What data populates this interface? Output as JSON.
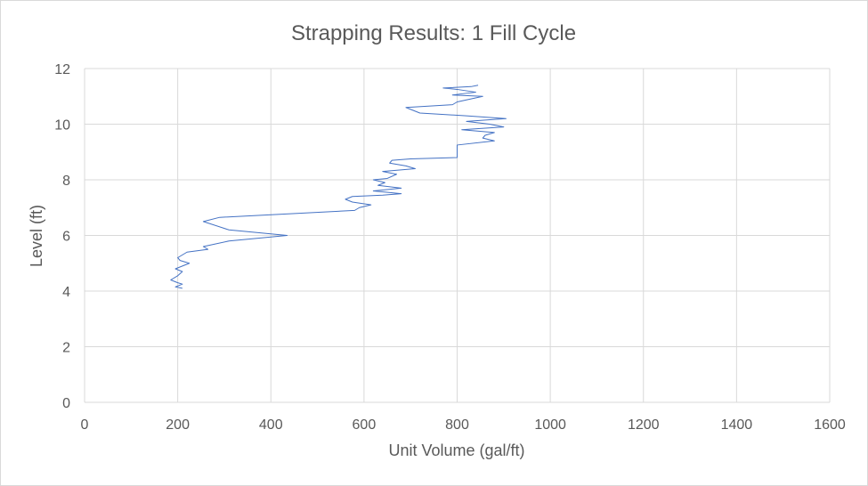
{
  "chart_data": {
    "type": "line",
    "title": "Strapping Results: 1 Fill Cycle",
    "xlabel": "Unit Volume (gal/ft)",
    "ylabel": "Level (ft)",
    "xlim": [
      0,
      1600
    ],
    "ylim": [
      0,
      12
    ],
    "x_ticks": [
      "0",
      "200",
      "400",
      "600",
      "800",
      "1000",
      "1200",
      "1400",
      "1600"
    ],
    "y_ticks": [
      "0",
      "2",
      "4",
      "6",
      "8",
      "10",
      "12"
    ],
    "grid": "both",
    "legend": "none",
    "series": [
      {
        "color": "#4472c4",
        "points": [
          [
            210,
            4.1
          ],
          [
            195,
            4.15
          ],
          [
            210,
            4.25
          ],
          [
            200,
            4.3
          ],
          [
            185,
            4.4
          ],
          [
            200,
            4.55
          ],
          [
            210,
            4.7
          ],
          [
            195,
            4.8
          ],
          [
            210,
            4.9
          ],
          [
            225,
            5.0
          ],
          [
            205,
            5.1
          ],
          [
            200,
            5.2
          ],
          [
            220,
            5.4
          ],
          [
            265,
            5.5
          ],
          [
            255,
            5.6
          ],
          [
            310,
            5.8
          ],
          [
            435,
            6.0
          ],
          [
            310,
            6.2
          ],
          [
            255,
            6.5
          ],
          [
            290,
            6.65
          ],
          [
            350,
            6.7
          ],
          [
            580,
            6.9
          ],
          [
            590,
            7.0
          ],
          [
            615,
            7.1
          ],
          [
            575,
            7.2
          ],
          [
            560,
            7.3
          ],
          [
            575,
            7.4
          ],
          [
            640,
            7.45
          ],
          [
            680,
            7.5
          ],
          [
            620,
            7.6
          ],
          [
            680,
            7.7
          ],
          [
            630,
            7.8
          ],
          [
            645,
            7.9
          ],
          [
            620,
            8.0
          ],
          [
            650,
            8.05
          ],
          [
            670,
            8.2
          ],
          [
            640,
            8.3
          ],
          [
            710,
            8.4
          ],
          [
            690,
            8.5
          ],
          [
            655,
            8.6
          ],
          [
            660,
            8.7
          ],
          [
            700,
            8.75
          ],
          [
            800,
            8.8
          ],
          [
            800,
            9.0
          ],
          [
            800,
            9.25
          ],
          [
            880,
            9.4
          ],
          [
            855,
            9.5
          ],
          [
            860,
            9.6
          ],
          [
            880,
            9.7
          ],
          [
            810,
            9.8
          ],
          [
            900,
            9.9
          ],
          [
            870,
            10.0
          ],
          [
            820,
            10.1
          ],
          [
            905,
            10.2
          ],
          [
            820,
            10.3
          ],
          [
            720,
            10.4
          ],
          [
            690,
            10.6
          ],
          [
            790,
            10.7
          ],
          [
            800,
            10.8
          ],
          [
            855,
            11.0
          ],
          [
            790,
            11.05
          ],
          [
            840,
            11.15
          ],
          [
            800,
            11.25
          ],
          [
            770,
            11.3
          ],
          [
            830,
            11.35
          ],
          [
            845,
            11.4
          ]
        ]
      }
    ]
  }
}
